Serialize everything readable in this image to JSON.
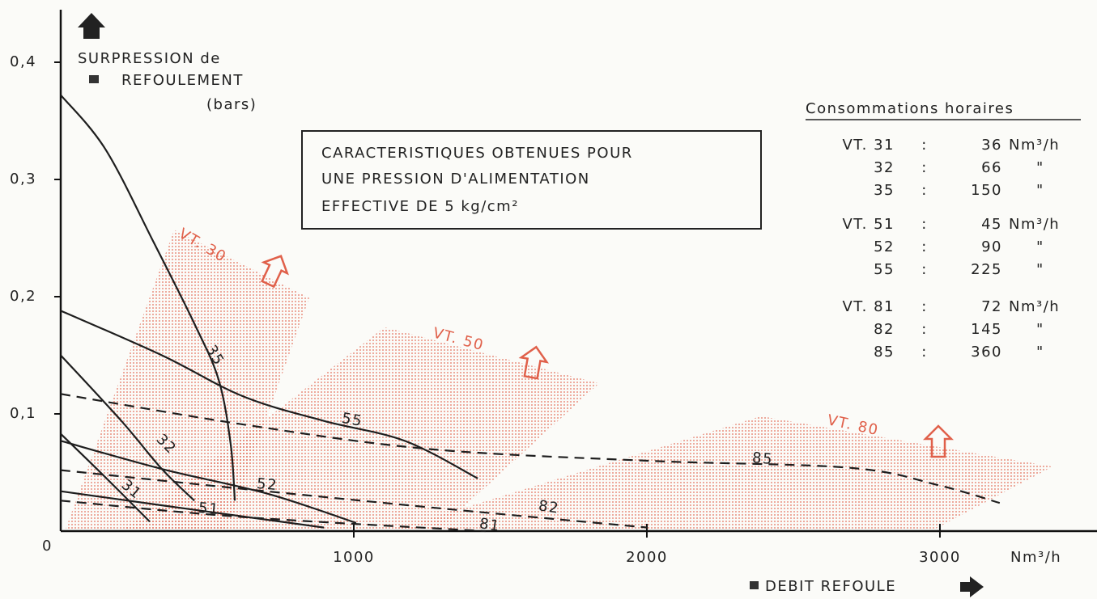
{
  "chart_data": {
    "type": "line",
    "y_label": [
      "SURPRESSION de",
      "REFOULEMENT",
      "(bars)"
    ],
    "x_label": "Nm³/h",
    "x_caption": "DEBIT REFOULE",
    "annotation": [
      "CARACTERISTIQUES OBTENUES POUR",
      "UNE PRESSION D'ALIMENTATION",
      "EFFECTIVE DE 5 kg/cm²"
    ],
    "xlim": [
      0,
      3536
    ],
    "ylim": [
      0,
      0.44
    ],
    "xticks": [
      1000,
      2000,
      3000
    ],
    "yticks": [
      0,
      {
        "value": 0.1,
        "label": "0,1"
      },
      {
        "value": 0.2,
        "label": "0,2"
      },
      {
        "value": 0.3,
        "label": "0,3"
      },
      {
        "value": 0.4,
        "label": "0,4"
      }
    ],
    "series": [
      {
        "name": "35",
        "color": "#1e1e1e",
        "dashed": false,
        "x": [
          0,
          152,
          318,
          456,
          539,
          580,
          594
        ],
        "values": [
          0.372,
          0.326,
          0.246,
          0.177,
          0.129,
          0.074,
          0.026
        ]
      },
      {
        "name": "55",
        "color": "#1e1e1e",
        "dashed": false,
        "x": [
          0,
          345,
          622,
          898,
          1174,
          1423
        ],
        "values": [
          0.188,
          0.15,
          0.115,
          0.094,
          0.077,
          0.045
        ]
      },
      {
        "name": "85",
        "color": "#1e1e1e",
        "dashed": true,
        "x": [
          0,
          622,
          1257,
          2003,
          2693,
          2997,
          3204
        ],
        "values": [
          0.117,
          0.091,
          0.07,
          0.06,
          0.054,
          0.039,
          0.024
        ]
      },
      {
        "name": "32",
        "color": "#1e1e1e",
        "dashed": false,
        "x": [
          0,
          207,
          345,
          456
        ],
        "values": [
          0.15,
          0.094,
          0.053,
          0.026
        ]
      },
      {
        "name": "52",
        "color": "#1e1e1e",
        "dashed": false,
        "x": [
          0,
          345,
          704,
          1008
        ],
        "values": [
          0.077,
          0.053,
          0.032,
          0.007
        ]
      },
      {
        "name": "82",
        "color": "#1e1e1e",
        "dashed": true,
        "x": [
          0,
          622,
          1312,
          2003
        ],
        "values": [
          0.052,
          0.036,
          0.019,
          0.003
        ]
      },
      {
        "name": "31",
        "color": "#1e1e1e",
        "dashed": false,
        "x": [
          0,
          152,
          304
        ],
        "values": [
          0.083,
          0.046,
          0.008
        ]
      },
      {
        "name": "51",
        "color": "#1e1e1e",
        "dashed": false,
        "x": [
          0,
          345,
          898
        ],
        "values": [
          0.034,
          0.022,
          0.003
        ]
      },
      {
        "name": "81",
        "color": "#1e1e1e",
        "dashed": true,
        "x": [
          0,
          622,
          1450
        ],
        "values": [
          0.026,
          0.012,
          0
        ]
      }
    ],
    "regions": [
      {
        "name": "VT. 30",
        "color": "#e0604a",
        "x": [
          14,
          387,
          848,
          566
        ],
        "values": [
          0,
          0.257,
          0.199,
          0
        ]
      },
      {
        "name": "VT. 50",
        "color": "#e0604a",
        "x": [
          207,
          1105,
          1837,
          1285
        ],
        "values": [
          0,
          0.174,
          0.126,
          0
        ]
      },
      {
        "name": "VT. 80",
        "color": "#e0604a",
        "x": [
          1119,
          2389,
          3384,
          2970
        ],
        "values": [
          0,
          0.098,
          0.055,
          0
        ]
      }
    ],
    "consumption": {
      "title": "Consommations horaires",
      "separator": ":",
      "rows": [
        {
          "model": "VT. 31",
          "value": "36",
          "unit": "Nm³/h"
        },
        {
          "model": "32",
          "value": "66",
          "unit": "\""
        },
        {
          "model": "35",
          "value": "150",
          "unit": "\""
        },
        {
          "model": "VT. 51",
          "value": "45",
          "unit": "Nm³/h"
        },
        {
          "model": "52",
          "value": "90",
          "unit": "\""
        },
        {
          "model": "55",
          "value": "225",
          "unit": "\""
        },
        {
          "model": "VT. 81",
          "value": "72",
          "unit": "Nm³/h"
        },
        {
          "model": "82",
          "value": "145",
          "unit": "\""
        },
        {
          "model": "85",
          "value": "360",
          "unit": "\""
        }
      ]
    }
  }
}
